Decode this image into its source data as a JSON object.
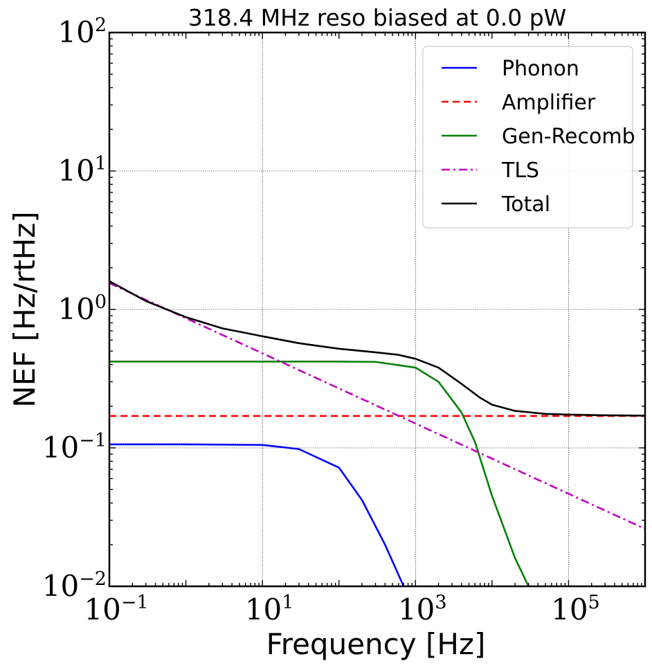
{
  "chart_data": {
    "type": "line",
    "title": "318.4 MHz reso biased at 0.0 pW",
    "xlabel": "Frequency [Hz]",
    "ylabel": "NEF [Hz/rtHz]",
    "xscale": "log",
    "yscale": "log",
    "xlim": [
      0.1,
      1000000
    ],
    "ylim": [
      0.01,
      100
    ],
    "grid": true,
    "legend_position": "upper right",
    "x_ticks": [
      {
        "base": "10",
        "exp": "−1",
        "value": 0.1
      },
      {
        "base": "10",
        "exp": "1",
        "value": 10
      },
      {
        "base": "10",
        "exp": "3",
        "value": 1000
      },
      {
        "base": "10",
        "exp": "5",
        "value": 100000
      }
    ],
    "y_ticks": [
      {
        "base": "10",
        "exp": "−2",
        "value": 0.01
      },
      {
        "base": "10",
        "exp": "−1",
        "value": 0.1
      },
      {
        "base": "10",
        "exp": "0",
        "value": 1
      },
      {
        "base": "10",
        "exp": "1",
        "value": 10
      },
      {
        "base": "10",
        "exp": "2",
        "value": 100
      }
    ],
    "series": [
      {
        "name": "Phonon",
        "color": "#0000ff",
        "dash": "solid",
        "x": [
          0.1,
          1,
          10,
          30,
          100,
          200,
          400,
          700
        ],
        "y": [
          0.106,
          0.106,
          0.105,
          0.098,
          0.072,
          0.042,
          0.02,
          0.01
        ]
      },
      {
        "name": "Amplifier",
        "color": "#ff0000",
        "dash": "dashed",
        "x": [
          0.1,
          1000000
        ],
        "y": [
          0.17,
          0.17
        ]
      },
      {
        "name": "Gen-Recomb",
        "color": "#008000",
        "dash": "solid",
        "x": [
          0.1,
          1,
          10,
          100,
          300,
          1000,
          2000,
          4000,
          6000,
          10000,
          20000,
          30000
        ],
        "y": [
          0.42,
          0.42,
          0.42,
          0.42,
          0.418,
          0.38,
          0.3,
          0.18,
          0.11,
          0.045,
          0.016,
          0.01
        ]
      },
      {
        "name": "TLS",
        "color": "#bf00bf",
        "dash": "dashdot",
        "x": [
          0.1,
          1000000
        ],
        "y": [
          1.55,
          0.026
        ]
      },
      {
        "name": "Total",
        "color": "#000000",
        "dash": "solid",
        "x": [
          0.1,
          0.3,
          1,
          3,
          10,
          30,
          100,
          300,
          600,
          1000,
          2000,
          4000,
          7000,
          10000,
          20000,
          50000,
          100000,
          300000,
          1000000
        ],
        "y": [
          1.6,
          1.15,
          0.88,
          0.73,
          0.64,
          0.57,
          0.52,
          0.49,
          0.47,
          0.44,
          0.38,
          0.29,
          0.23,
          0.205,
          0.185,
          0.176,
          0.174,
          0.172,
          0.171
        ]
      }
    ]
  }
}
